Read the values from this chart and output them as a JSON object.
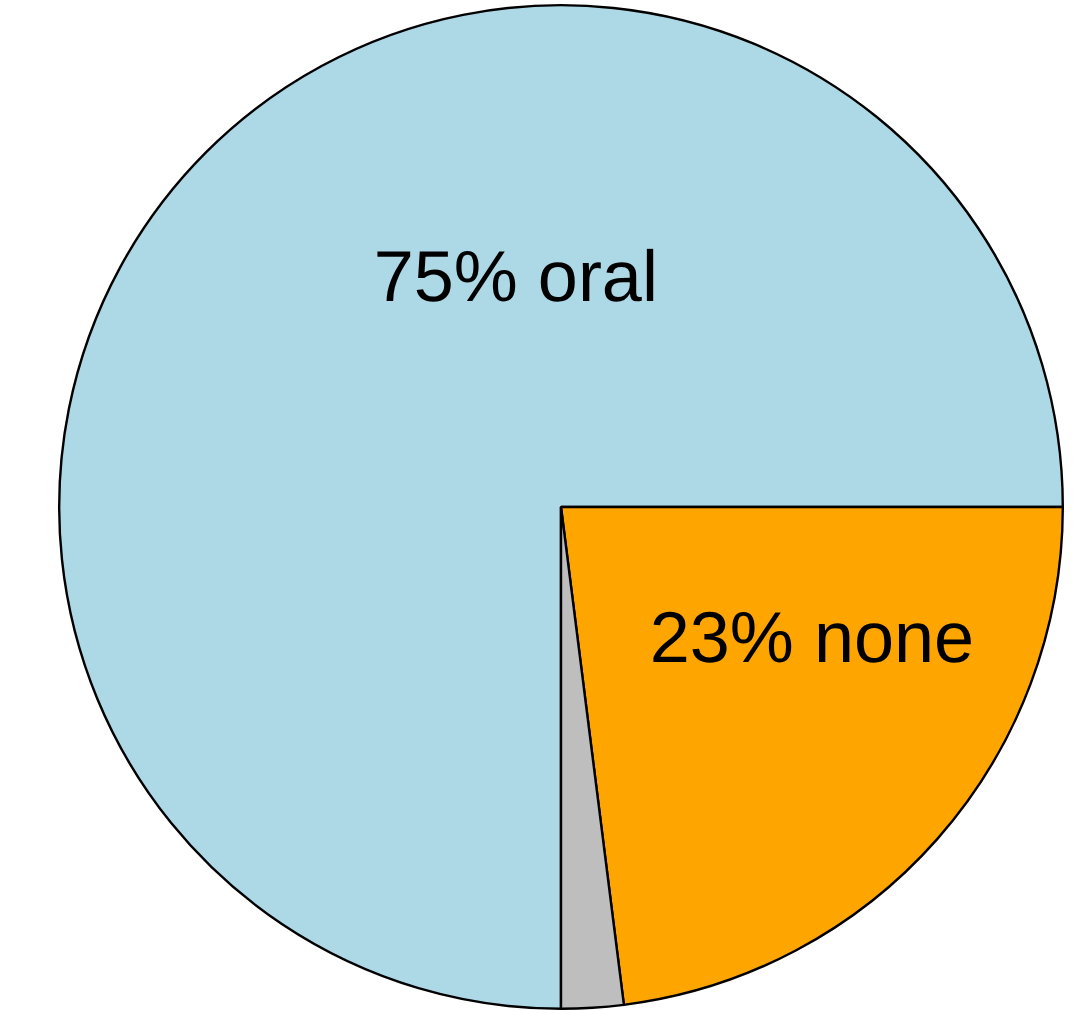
{
  "chart_data": {
    "type": "pie",
    "categories": [
      null,
      null,
      null
    ],
    "values": [
      75,
      23,
      2
    ],
    "colors": [
      "#add8e6",
      "#ffa500",
      "#bebebe"
    ],
    "value_labels": [
      "75% oral",
      "23% none",
      null
    ],
    "legend": false
  }
}
